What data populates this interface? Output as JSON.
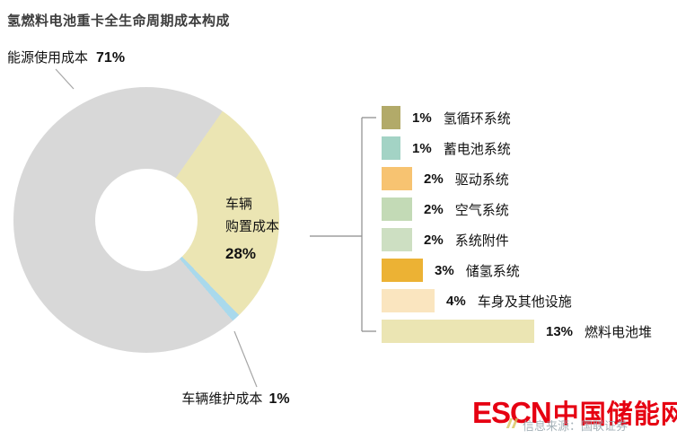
{
  "title": "氢燃料电池重卡全生命周期成本构成",
  "chart_data": {
    "type": "pie",
    "style": "donut",
    "title": "氢燃料电池重卡全生命周期成本构成",
    "unit": "%",
    "legend_position": "right",
    "slices": [
      {
        "label": "能源使用成本",
        "value": 71,
        "pct": "71%",
        "color": "#d8d8d8"
      },
      {
        "label": "车辆购置成本",
        "value": 28,
        "pct": "28%",
        "color": "#ebe5b3"
      },
      {
        "label": "车辆维护成本",
        "value": 1,
        "pct": "1%",
        "color": "#a9d9ec"
      }
    ],
    "breakdown": {
      "parent": "车辆购置成本",
      "type": "bar",
      "items": [
        {
          "label": "氢循环系统",
          "value": 1,
          "pct": "1%",
          "color": "#b2aa69"
        },
        {
          "label": "蓄电池系统",
          "value": 1,
          "pct": "1%",
          "color": "#a3d3c5"
        },
        {
          "label": "驱动系统",
          "value": 2,
          "pct": "2%",
          "color": "#f7c371"
        },
        {
          "label": "空气系统",
          "value": 2,
          "pct": "2%",
          "color": "#c3dab6"
        },
        {
          "label": "系统附件",
          "value": 2,
          "pct": "2%",
          "color": "#cddfc2"
        },
        {
          "label": "储氢系统",
          "value": 3,
          "pct": "3%",
          "color": "#ecb234"
        },
        {
          "label": "车身及其他设施",
          "value": 4,
          "pct": "4%",
          "color": "#fae5bf"
        },
        {
          "label": "燃料电池堆",
          "value": 13,
          "pct": "13%",
          "color": "#ebe5b3"
        }
      ]
    }
  },
  "donut_labels": {
    "energy": {
      "name": "能源使用成本",
      "pct": "71%"
    },
    "purchase": {
      "line1": "车辆",
      "line2": "购置成本",
      "pct": "28%"
    },
    "maintenance": {
      "name": "车辆维护成本",
      "pct": "1%"
    }
  },
  "footer": {
    "logo_en": "ESCN",
    "logo_cn": "中国储能网",
    "logo_color": "#e60012",
    "source": "信息来源：国联证券"
  }
}
